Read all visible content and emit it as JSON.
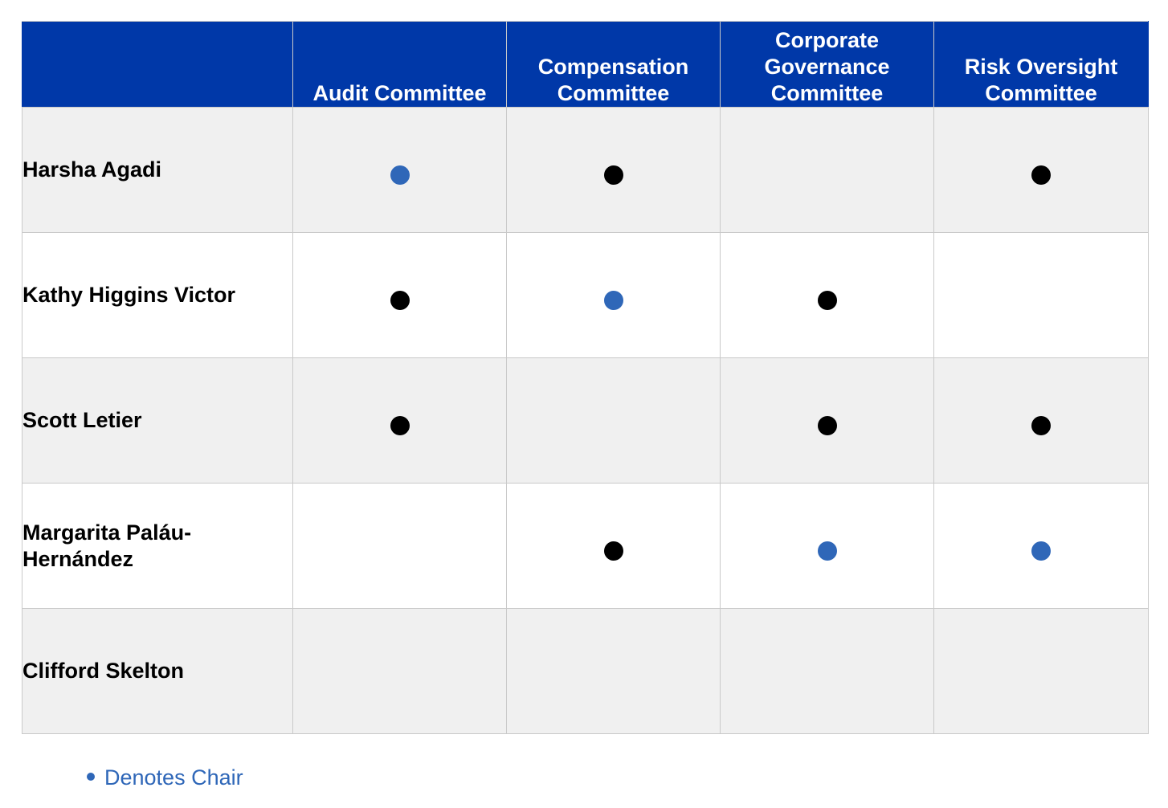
{
  "colors": {
    "header_bg": "#0038a8",
    "member_dot": "#000000",
    "chair_dot": "#2f67b8",
    "legend_text": "#2f67b8",
    "row_shade": "#f0f0f0"
  },
  "table": {
    "columns": [
      "",
      "Audit Committee",
      "Compensation Committee",
      "Corporate Governance Committee",
      "Risk Oversight Committee"
    ],
    "rows": [
      {
        "name": "Harsha Agadi",
        "roles": [
          "chair",
          "member",
          "",
          "member"
        ]
      },
      {
        "name": "Kathy Higgins Victor",
        "roles": [
          "member",
          "chair",
          "member",
          ""
        ]
      },
      {
        "name": "Scott Letier",
        "roles": [
          "member",
          "",
          "member",
          "member"
        ]
      },
      {
        "name": "Margarita Paláu-Hernández",
        "roles": [
          "",
          "member",
          "chair",
          "chair"
        ]
      },
      {
        "name": "Clifford Skelton",
        "roles": [
          "",
          "",
          "",
          ""
        ]
      }
    ]
  },
  "legend": {
    "icon": "chair-dot-icon",
    "label": "Denotes Chair"
  }
}
